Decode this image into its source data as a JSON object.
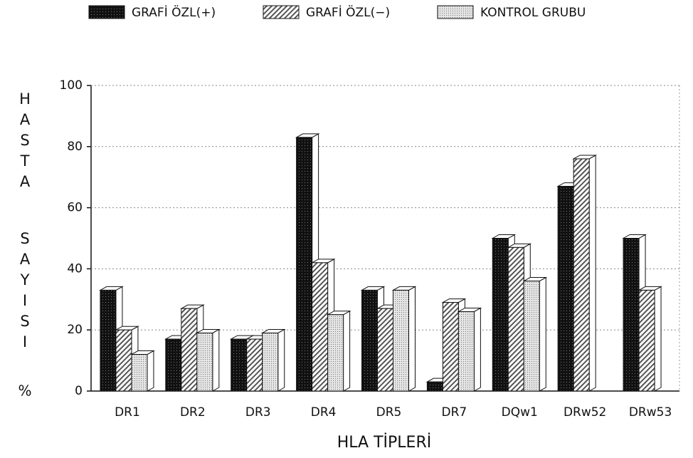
{
  "chart_data": {
    "type": "bar",
    "x_label": "HLA TİPLERİ",
    "y_label": "HASTA SAYISI",
    "y_unit": "%",
    "categories": [
      "DR1",
      "DR2",
      "DR3",
      "DR4",
      "DR5",
      "DR7",
      "DQw1",
      "DRw52",
      "DRw53"
    ],
    "series": [
      {
        "name": "GRAFİ ÖZL(+)",
        "color": "#111111",
        "values": [
          33,
          17,
          17,
          83,
          33,
          3,
          50,
          67,
          50
        ]
      },
      {
        "name": "GRAFİ ÖZL(−)",
        "color": "#777777",
        "values": [
          20,
          27,
          17,
          42,
          27,
          29,
          47,
          76,
          33
        ]
      },
      {
        "name": "KONTROL GRUBU",
        "color": "#bbbbbb",
        "values": [
          12,
          19,
          19,
          25,
          33,
          26,
          36,
          null,
          null
        ]
      }
    ],
    "ylim": [
      0,
      100
    ],
    "yticks": [
      0,
      20,
      40,
      60,
      80,
      100
    ],
    "grid": true,
    "legend": "top"
  }
}
